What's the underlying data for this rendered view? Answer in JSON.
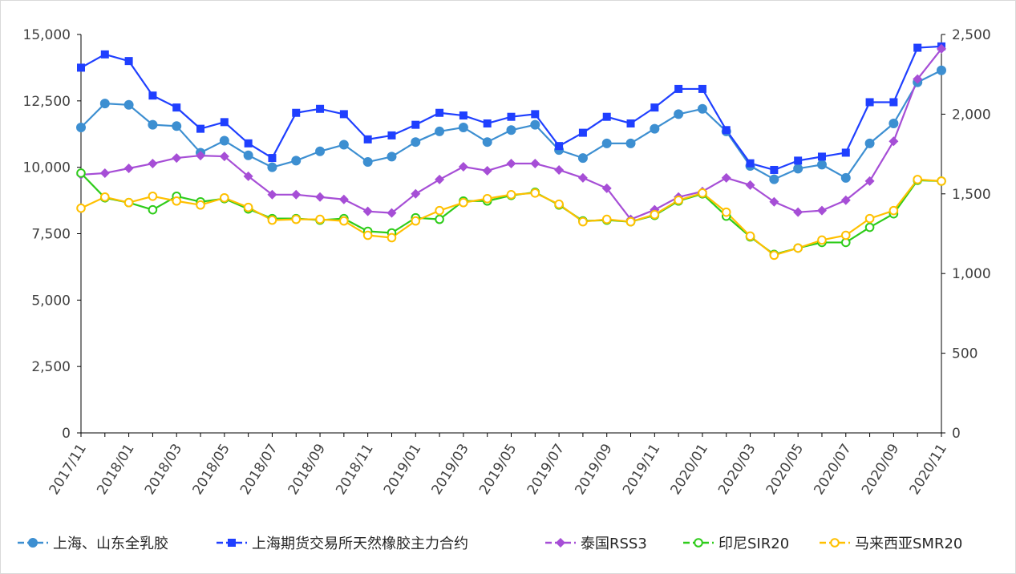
{
  "chart_data": {
    "type": "line",
    "title": "",
    "x": [
      "2017/11",
      "2017/12",
      "2018/01",
      "2018/02",
      "2018/03",
      "2018/04",
      "2018/05",
      "2018/06",
      "2018/07",
      "2018/08",
      "2018/09",
      "2018/10",
      "2018/11",
      "2018/12",
      "2019/01",
      "2019/02",
      "2019/03",
      "2019/04",
      "2019/05",
      "2019/06",
      "2019/07",
      "2019/08",
      "2019/09",
      "2019/10",
      "2019/11",
      "2019/12",
      "2020/01",
      "2020/02",
      "2020/03",
      "2020/04",
      "2020/05",
      "2020/06",
      "2020/07",
      "2020/08",
      "2020/09",
      "2020/10",
      "2020/11"
    ],
    "x_tick_labels": [
      "2017/11",
      "2018/01",
      "2018/03",
      "2018/05",
      "2018/07",
      "2018/09",
      "2018/11",
      "2019/01",
      "2019/03",
      "2019/05",
      "2019/07",
      "2019/09",
      "2019/11",
      "2020/01",
      "2020/03",
      "2020/05",
      "2020/07",
      "2020/09",
      "2020/11"
    ],
    "y_left": {
      "range": [
        0,
        15000
      ],
      "ticks": [
        "0",
        "2,500",
        "5,000",
        "7,500",
        "10,000",
        "12,500",
        "15,000"
      ]
    },
    "y_right": {
      "range": [
        0,
        2500
      ],
      "ticks": [
        "0",
        "500",
        "1,000",
        "1,500",
        "2,000",
        "2,500"
      ]
    },
    "grid": false,
    "legend_position": "bottom",
    "series": [
      {
        "name": "上海、山东全乳胶",
        "axis": "left",
        "color": "#3d8fd1",
        "marker": "circle-filled",
        "values": [
          11500,
          12400,
          12350,
          11600,
          11550,
          10550,
          11000,
          10450,
          10000,
          10250,
          10600,
          10850,
          10200,
          10400,
          10950,
          11350,
          11500,
          10950,
          11400,
          11600,
          10650,
          10350,
          10900,
          10900,
          11450,
          12000,
          12200,
          11350,
          10050,
          9550,
          9950,
          10100,
          9600,
          10900,
          11650,
          13200,
          13650
        ]
      },
      {
        "name": "上海期货交易所天然橡胶主力合约",
        "axis": "left",
        "color": "#1f3fff",
        "marker": "square-filled",
        "values": [
          13750,
          14250,
          14000,
          12700,
          12250,
          11450,
          11700,
          10900,
          10350,
          12050,
          12200,
          12000,
          11050,
          11200,
          11600,
          12050,
          11950,
          11650,
          11900,
          12000,
          10800,
          11300,
          11900,
          11650,
          12250,
          12950,
          12950,
          11400,
          10150,
          9900,
          10250,
          10400,
          10550,
          12450,
          12450,
          14500,
          14550
        ]
      },
      {
        "name": "泰国RSS3",
        "axis": "right",
        "color": "#a64ed6",
        "marker": "diamond-filled",
        "values": [
          1620,
          1630,
          1660,
          1690,
          1725,
          1740,
          1735,
          1610,
          1495,
          1495,
          1480,
          1465,
          1390,
          1380,
          1500,
          1590,
          1670,
          1645,
          1690,
          1690,
          1650,
          1600,
          1535,
          1340,
          1400,
          1480,
          1515,
          1600,
          1555,
          1450,
          1385,
          1395,
          1460,
          1580,
          1830,
          2220,
          2410
        ]
      },
      {
        "name": "印尼SIR20",
        "axis": "right",
        "color": "#2ecc1a",
        "marker": "circle-open",
        "values": [
          1630,
          1475,
          1445,
          1400,
          1485,
          1450,
          1470,
          1405,
          1345,
          1345,
          1335,
          1345,
          1265,
          1255,
          1350,
          1340,
          1455,
          1455,
          1490,
          1510,
          1430,
          1330,
          1335,
          1325,
          1365,
          1455,
          1500,
          1360,
          1230,
          1120,
          1160,
          1195,
          1195,
          1290,
          1375,
          1585,
          1580
        ]
      },
      {
        "name": "马来西亚SMR20",
        "axis": "right",
        "color": "#ffc000",
        "marker": "circle-open",
        "values": [
          1410,
          1480,
          1445,
          1485,
          1455,
          1430,
          1475,
          1415,
          1335,
          1340,
          1340,
          1330,
          1240,
          1225,
          1330,
          1395,
          1445,
          1470,
          1495,
          1505,
          1435,
          1325,
          1340,
          1325,
          1370,
          1460,
          1505,
          1385,
          1235,
          1115,
          1160,
          1210,
          1240,
          1345,
          1395,
          1590,
          1580
        ]
      }
    ]
  }
}
